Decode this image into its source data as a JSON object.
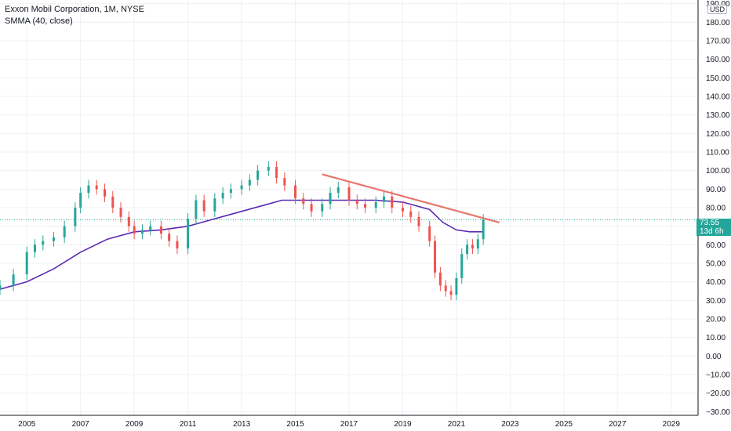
{
  "legend": {
    "title": "Exxon Mobil Corporation, 1M, NYSE",
    "indicator": "SMMA (40, close)"
  },
  "currency": "USD",
  "last_price_label": {
    "price": "73.55",
    "countdown": "13d 6h"
  },
  "colors": {
    "up": "#26a69a",
    "down": "#ef5350",
    "smma": "#5b2bb5",
    "trendline": "#e8766a",
    "grid": "#eef0f3",
    "axis": "#131722"
  },
  "chart_data": {
    "type": "line",
    "title": "Exxon Mobil Corporation, 1M, NYSE",
    "xlabel": "",
    "ylabel": "",
    "x_ticks": [
      "2005",
      "2007",
      "2009",
      "2011",
      "2013",
      "2015",
      "2017",
      "2019",
      "2021",
      "2023",
      "2025",
      "2027",
      "2029"
    ],
    "y_ticks": [
      190,
      180,
      170,
      160,
      150,
      140,
      130,
      120,
      110,
      100,
      90,
      80,
      70,
      60,
      50,
      40,
      30,
      20,
      10,
      0,
      -10,
      -20,
      -30
    ],
    "y_tick_labels": [
      "190.00",
      "180.00",
      "170.00",
      "160.00",
      "150.00",
      "140.00",
      "130.00",
      "120.00",
      "110.00",
      "100.00",
      "90.00",
      "80.00",
      "70.00",
      "60.00",
      "50.00",
      "40.00",
      "30.00",
      "20.00",
      "10.00",
      "0.00",
      "−10.00",
      "−20.00",
      "−30.00"
    ],
    "xlim": [
      2004.0,
      2030.0
    ],
    "ylim": [
      -32,
      192
    ],
    "grid": true,
    "series": [
      {
        "name": "Exxon Mobil Corporation, 1M, NYSE",
        "type": "candlestick",
        "x": [
          2004.0,
          2004.5,
          2005.0,
          2005.3,
          2005.6,
          2006.0,
          2006.4,
          2006.8,
          2007.0,
          2007.3,
          2007.6,
          2007.9,
          2008.2,
          2008.5,
          2008.8,
          2009.0,
          2009.3,
          2009.6,
          2010.0,
          2010.3,
          2010.6,
          2011.0,
          2011.3,
          2011.6,
          2012.0,
          2012.3,
          2012.6,
          2013.0,
          2013.3,
          2013.6,
          2014.0,
          2014.3,
          2014.6,
          2015.0,
          2015.3,
          2015.6,
          2016.0,
          2016.3,
          2016.6,
          2017.0,
          2017.3,
          2017.6,
          2018.0,
          2018.3,
          2018.6,
          2019.0,
          2019.3,
          2019.6,
          2020.0,
          2020.2,
          2020.4,
          2020.6,
          2020.8,
          2021.0,
          2021.2,
          2021.4,
          2021.6,
          2021.8,
          2022.0
        ],
        "close": [
          38,
          44,
          56,
          60,
          62,
          64,
          70,
          80,
          88,
          92,
          90,
          86,
          80,
          75,
          70,
          66,
          68,
          70,
          66,
          62,
          58,
          74,
          84,
          78,
          85,
          88,
          90,
          92,
          95,
          100,
          102,
          96,
          92,
          85,
          82,
          78,
          82,
          88,
          91,
          84,
          82,
          80,
          83,
          86,
          80,
          78,
          75,
          70,
          62,
          45,
          38,
          35,
          33,
          42,
          55,
          60,
          58,
          63,
          73.55
        ],
        "open": [
          36,
          38,
          44,
          56,
          60,
          62,
          64,
          70,
          80,
          88,
          92,
          90,
          86,
          80,
          75,
          70,
          66,
          68,
          70,
          66,
          62,
          58,
          74,
          84,
          78,
          85,
          88,
          90,
          92,
          95,
          100,
          102,
          96,
          92,
          85,
          82,
          78,
          82,
          88,
          91,
          84,
          82,
          80,
          83,
          86,
          80,
          78,
          75,
          70,
          62,
          45,
          38,
          35,
          33,
          42,
          55,
          60,
          58,
          63
        ]
      },
      {
        "name": "SMMA (40, close)",
        "type": "line",
        "x": [
          2004.0,
          2005.0,
          2006.0,
          2007.0,
          2008.0,
          2009.0,
          2010.0,
          2011.0,
          2012.0,
          2013.0,
          2014.0,
          2014.5,
          2015.0,
          2016.0,
          2017.0,
          2018.0,
          2019.0,
          2020.0,
          2020.5,
          2021.0,
          2021.5,
          2022.0
        ],
        "values": [
          36,
          40,
          47,
          56,
          63,
          67,
          68,
          70,
          74,
          78,
          82,
          84,
          84,
          84,
          84,
          84,
          83,
          79,
          72,
          68,
          67,
          67
        ]
      },
      {
        "name": "",
        "type": "trendline",
        "x": [
          2016.0,
          2022.6
        ],
        "values": [
          98,
          72
        ]
      }
    ]
  }
}
